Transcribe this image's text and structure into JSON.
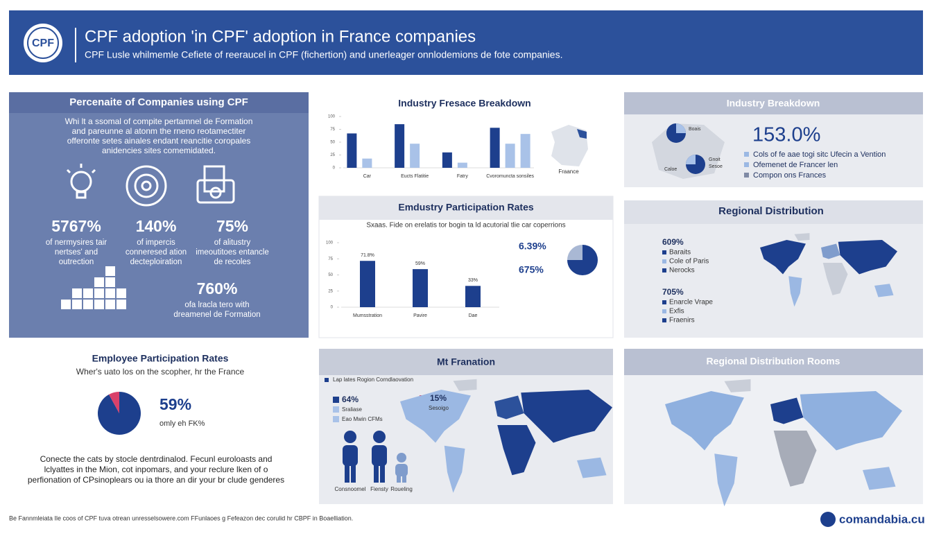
{
  "header": {
    "logo": "CPF",
    "title": "CPF adoption 'in CPF' adoption in France companies",
    "subtitle": "CPF Lusle whilmemle Cefiete of reeraucel in CPF (fichertion) and unerleager onnlodemions de fote companies."
  },
  "companies_panel": {
    "title": "Percenaite of Companies using CPF",
    "text": [
      "Whi lt a ssomal of compite pertamnel de Formation",
      "and pareunne al atonm the rneno reotamectiter",
      "offeronte setes ainales endant reancitie coropales",
      "anidencies sites comemidated."
    ],
    "stats": [
      {
        "value": "5767%",
        "label": [
          "of nermysires tair",
          "nertses' and",
          "outrection"
        ]
      },
      {
        "value": "140%",
        "label": [
          "of impercis",
          "conneresed ation",
          "decteploiration"
        ]
      },
      {
        "value": "75%",
        "label": [
          "of alitustry",
          "imeoutitoes entancle",
          "de recoles"
        ]
      },
      {
        "value": "760%",
        "label": [
          "ofa lracla tero with",
          "dreamenel de Formation"
        ]
      }
    ]
  },
  "industry_map_label": "Fraance",
  "industry_breakdown": {
    "title": "Industry Breakdown",
    "map_labels": [
      "Boais",
      "Gnoit",
      "Caloe",
      "Sesoe"
    ],
    "value": "153.0%",
    "legend": [
      "Cols of fe aae togi sitc Ufecin a Vention",
      "Ofemenet de Francer len",
      "Compon ons Frances"
    ]
  },
  "participation_side": [
    "6.39%",
    "675%"
  ],
  "regional_distribution": {
    "title": "Regional Distribution",
    "groups": [
      {
        "value": "609%",
        "items": [
          "Baraits",
          "Cole of Paris",
          "Nerocks"
        ]
      },
      {
        "value": "705%",
        "items": [
          "Enarcle Vrape",
          "Exfis",
          "Fraenirs"
        ]
      }
    ]
  },
  "employee_side": {
    "value": "59%",
    "note": "omly eh FK%",
    "paragraph": [
      "Conecte the cats by stocle dentrdinalod. Fecunl euroloasts and",
      "lclyattes in the Mion, cot inpomars, and your reclure lken of o",
      "perfionation of CPsinoplears ou ia thore an dir your br clude genderes"
    ]
  },
  "formation_panel": {
    "title": "Mt Franation",
    "legend_title": "Lap lates Rogion Corndlaovation",
    "left": {
      "value": "64%",
      "items": [
        "Sraliase",
        "Eao Mwin CFMs"
      ]
    },
    "right": {
      "value": "15%",
      "items": [
        "Sesoigo"
      ]
    },
    "people": [
      "Consnoomel",
      "Fiensty",
      "Roueling"
    ]
  },
  "regional_rooms": {
    "title": "Regional Distribution Rooms"
  },
  "footer": {
    "text": "Be Fannmleiata Ile coos of CPF tuva otrean unresselsowere.com FFunlaoes g Fefeazon dec corulid hr CBPF in Boaelliation.",
    "brand": "comandabia.cu"
  },
  "chart_data": [
    {
      "type": "bar",
      "title": "Industry Fresace Breakdown",
      "categories": [
        "Car",
        "Eucts Flatitie",
        "Fatry",
        "Cvoromuncta sonsiles"
      ],
      "series": [
        {
          "color": "#1d3f8d",
          "values": [
            67,
            85,
            30,
            78
          ]
        },
        {
          "color": "#a9c2e8",
          "values": [
            18,
            47,
            10,
            47
          ]
        },
        {
          "color": "#a9c2e8",
          "values": [
            null,
            null,
            null,
            66
          ]
        }
      ],
      "ylim": [
        0,
        100
      ],
      "yticks": [
        0,
        25,
        50,
        75,
        100
      ]
    },
    {
      "type": "bar",
      "title": "Emdustry Participation Rates",
      "subtitle": "Sxaas. Fide on erelatis tor bogin ta ld acutorial tlie car coperrions",
      "categories": [
        "Mumsstration",
        "Pavire",
        "Dae"
      ],
      "series": [
        {
          "color": "#1d3f8d",
          "values": [
            71.8,
            59,
            33
          ],
          "value_labels": [
            "71.8%",
            "59%",
            "33%"
          ]
        }
      ],
      "ylim": [
        0,
        100
      ],
      "yticks": [
        0,
        25,
        50,
        75,
        100
      ]
    },
    {
      "type": "pie",
      "values": [
        75,
        25
      ],
      "colors": [
        "#1d3f8d",
        "#a9b8d4"
      ]
    },
    {
      "type": "pie",
      "title": "Employee Participation Rates",
      "subtitle": "Wher's uato los on the scopher, hr the France",
      "values": [
        92,
        8
      ],
      "colors": [
        "#1d3f8d",
        "#d9416a"
      ]
    }
  ]
}
